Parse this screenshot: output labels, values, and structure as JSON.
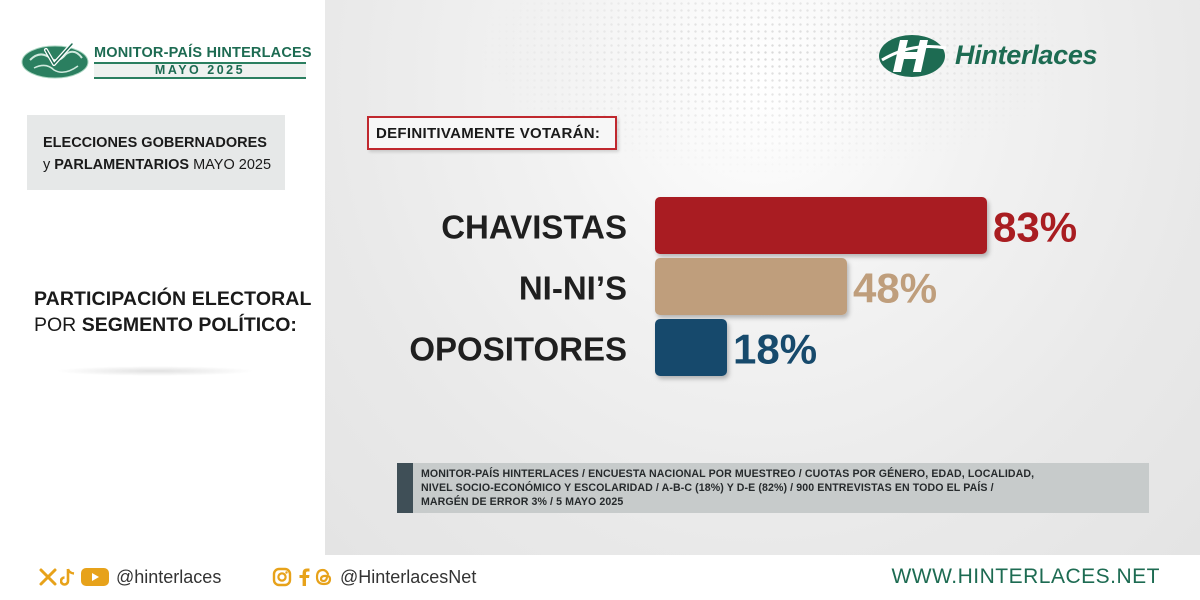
{
  "header": {
    "brand_line1_a": "MONITOR-PAÍS ",
    "brand_line1_b": "HINTERLACES",
    "brand_date": "MAYO 2025",
    "logo_text": "Hinterlaces"
  },
  "election": {
    "line1": "ELECCIONES GOBERNADORES",
    "line2_a": "y ",
    "line2_b": "PARLAMENTARIOS",
    "line2_c": " MAYO 2025"
  },
  "participation": {
    "line1": "PARTICIPACIÓN ELECTORAL",
    "line2_a": "POR ",
    "line2_b": "SEGMENTO POLÍTICO:"
  },
  "chart_data": {
    "type": "bar",
    "orientation": "horizontal",
    "title": "DEFINITIVAMENTE VOTARÁN:",
    "categories": [
      "CHAVISTAS",
      "NI-NI’S",
      "OPOSITORES"
    ],
    "values": [
      83,
      48,
      18
    ],
    "value_labels": [
      "83%",
      "48%",
      "18%"
    ],
    "unit": "%",
    "colors": [
      "#a91d21",
      "#bf9e7c",
      "#174a6c"
    ],
    "label_colors": [
      "#a91d21",
      "#bf9e7c",
      "#174a6c"
    ],
    "xlim": [
      0,
      100
    ],
    "grid": false
  },
  "footnote": {
    "line1": "MONITOR-PAÍS HINTERLACES / ENCUESTA NACIONAL POR MUESTREO / CUOTAS POR GÉNERO, EDAD, LOCALIDAD,",
    "line2": "NIVEL SOCIO-ECONÓMICO Y ESCOLARIDAD / A-B-C (18%) Y D-E (82%) / 900 ENTREVISTAS EN TODO EL PAÍS /",
    "line3": "MARGÉN DE ERROR 3%  / 5 MAYO 2025"
  },
  "footer": {
    "handle1": "@hinterlaces",
    "handle2": "@HinterlacesNet",
    "website": "WWW.HINTERLACES.NET",
    "icons_group1": [
      "x-icon",
      "tiktok-icon",
      "youtube-icon"
    ],
    "icons_group2": [
      "instagram-icon",
      "facebook-icon",
      "threads-icon"
    ]
  },
  "colors": {
    "brand_green": "#1d6b52",
    "accent_red": "#c0282e",
    "social_orange": "#e7a21a"
  }
}
